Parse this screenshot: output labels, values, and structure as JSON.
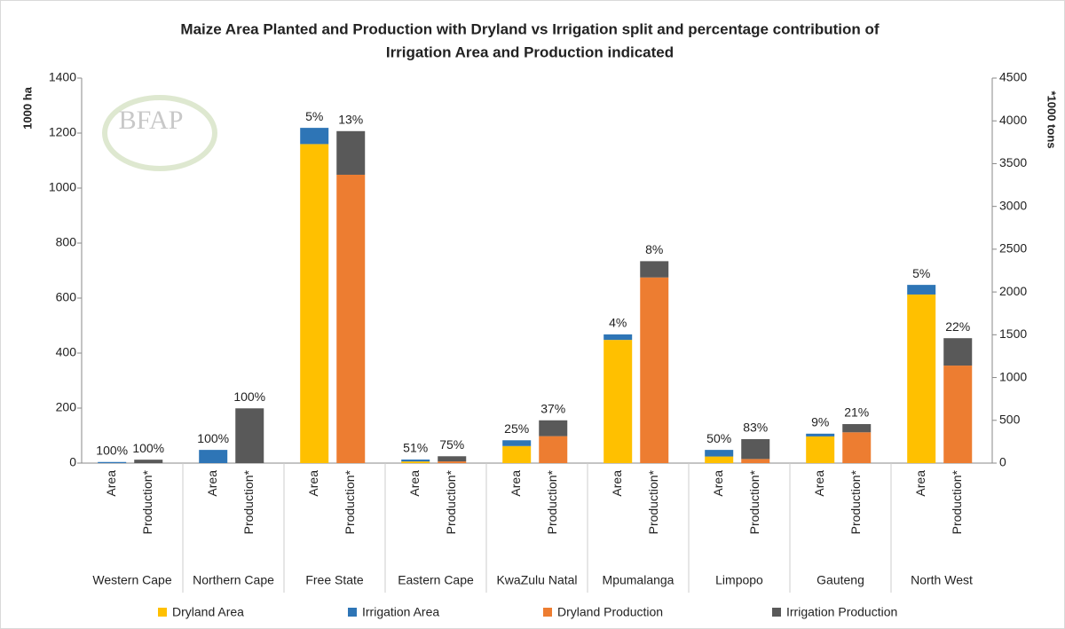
{
  "chart_data": {
    "type": "grouped-stacked-bar",
    "title": [
      "Maize Area Planted and Production with Dryland vs Irrigation split and percentage contribution of",
      "Irrigation Area and Production indicated"
    ],
    "watermark": "BFAP",
    "ylabel": "1000 ha",
    "y2label": "*1000 tons",
    "categories": [
      "Western Cape",
      "Northern Cape",
      "Free State",
      "Eastern Cape",
      "KwaZulu Natal",
      "Mpumalanga",
      "Limpopo",
      "Gauteng",
      "North West"
    ],
    "subcategories": [
      "Area",
      "Production*"
    ],
    "series": [
      {
        "name": "Dryland Area",
        "color": "#ffc000",
        "axis": "y",
        "group": 0,
        "values": [
          0,
          0,
          1160,
          6,
          62,
          448,
          24,
          97,
          613
        ]
      },
      {
        "name": "Irrigation Area",
        "color": "#2e75b6",
        "axis": "y",
        "group": 0,
        "values": [
          4,
          48,
          59,
          7,
          21,
          20,
          24,
          10,
          35
        ]
      },
      {
        "name": "Dryland Production",
        "color": "#ed7d31",
        "axis": "y2",
        "group": 1,
        "values": [
          0,
          0,
          3370,
          20,
          315,
          2170,
          48,
          360,
          1140
        ]
      },
      {
        "name": "Irrigation Production",
        "color": "#595959",
        "axis": "y2",
        "group": 1,
        "values": [
          40,
          640,
          510,
          60,
          185,
          190,
          232,
          96,
          320
        ]
      }
    ],
    "area_share": {
      "values": [
        100,
        100,
        5,
        51,
        25,
        4,
        50,
        9,
        5
      ],
      "value_labels": [
        "100%",
        "100%",
        "5%",
        "51%",
        "25%",
        "4%",
        "50%",
        "9%",
        "5%"
      ]
    },
    "production_share": {
      "values": [
        100,
        100,
        13,
        75,
        37,
        8,
        83,
        21,
        22
      ],
      "value_labels": [
        "100%",
        "100%",
        "13%",
        "75%",
        "37%",
        "8%",
        "83%",
        "21%",
        "22%"
      ]
    },
    "ylim": [
      0,
      1400
    ],
    "yticks": [
      0,
      200,
      400,
      600,
      800,
      1000,
      1200,
      1400
    ],
    "y2lim": [
      0,
      4500
    ],
    "y2ticks": [
      0,
      500,
      1000,
      1500,
      2000,
      2500,
      3000,
      3500,
      4000,
      4500
    ],
    "legend": "bottom"
  }
}
